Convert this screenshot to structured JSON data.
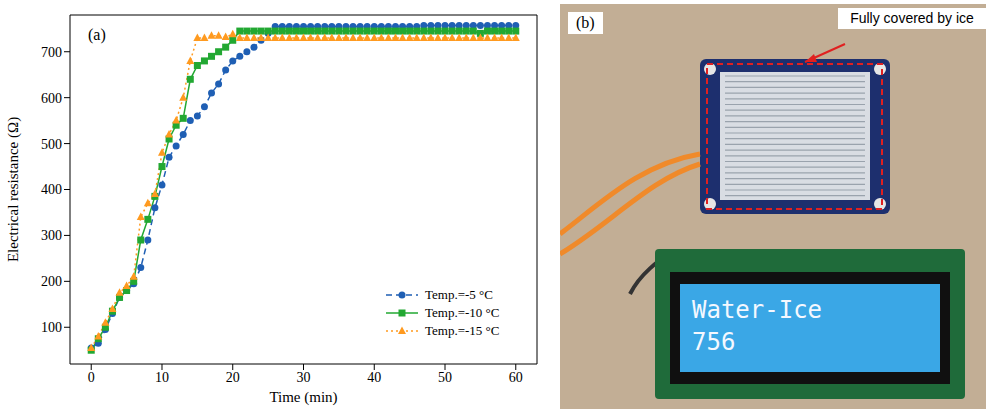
{
  "chart_data": {
    "type": "line",
    "annotations": [
      "(a)"
    ],
    "x_label": "Time (min)",
    "y_label": "Electrical resistance (Ω)",
    "x": [
      0,
      1,
      2,
      3,
      4,
      5,
      6,
      7,
      8,
      9,
      10,
      11,
      12,
      13,
      14,
      15,
      16,
      17,
      18,
      19,
      20,
      21,
      22,
      23,
      24,
      25,
      26,
      27,
      28,
      29,
      30,
      31,
      32,
      33,
      34,
      35,
      36,
      37,
      38,
      39,
      40,
      41,
      42,
      43,
      44,
      45,
      46,
      47,
      48,
      49,
      50,
      51,
      52,
      53,
      54,
      55,
      56,
      57,
      58,
      59,
      60
    ],
    "xlim": [
      -3,
      63
    ],
    "xticks": [
      0,
      10,
      20,
      30,
      40,
      50,
      60
    ],
    "ylim": [
      20,
      780
    ],
    "yticks": [
      100,
      200,
      300,
      400,
      500,
      600,
      700
    ],
    "grid": false,
    "legend": "lower right",
    "series": [
      {
        "name": "Temp.=-5 °C",
        "color": "#1f5fb4",
        "marker": "circle",
        "line_style": "dashed",
        "values": [
          55,
          65,
          95,
          130,
          165,
          180,
          195,
          230,
          290,
          360,
          410,
          470,
          495,
          520,
          550,
          560,
          580,
          610,
          630,
          660,
          680,
          690,
          700,
          710,
          725,
          740,
          755,
          755,
          755,
          755,
          755,
          755,
          755,
          755,
          755,
          755,
          755,
          755,
          755,
          755,
          755,
          755,
          755,
          755,
          755,
          755,
          755,
          757,
          757,
          757,
          757,
          757,
          757,
          757,
          757,
          757,
          757,
          757,
          757,
          757,
          757
        ]
      },
      {
        "name": "Temp.=-10 °C",
        "color": "#22a832",
        "marker": "square",
        "line_style": "solid",
        "values": [
          50,
          75,
          100,
          135,
          165,
          180,
          200,
          290,
          335,
          385,
          450,
          510,
          540,
          555,
          640,
          670,
          680,
          690,
          700,
          710,
          725,
          745,
          745,
          745,
          745,
          745,
          745,
          745,
          745,
          745,
          745,
          745,
          745,
          745,
          745,
          745,
          745,
          745,
          745,
          745,
          745,
          745,
          745,
          745,
          745,
          745,
          745,
          745,
          745,
          745,
          745,
          745,
          745,
          745,
          745,
          740,
          745,
          745,
          745,
          745,
          745
        ]
      },
      {
        "name": "Temp.=-15 °C",
        "color": "#ff9a1f",
        "marker": "triangle",
        "line_style": "dotted",
        "values": [
          55,
          80,
          110,
          140,
          175,
          190,
          210,
          340,
          370,
          390,
          480,
          520,
          550,
          600,
          680,
          730,
          730,
          735,
          735,
          732,
          738,
          730,
          730,
          730,
          730,
          730,
          730,
          730,
          730,
          730,
          730,
          730,
          730,
          730,
          730,
          730,
          730,
          730,
          730,
          730,
          730,
          730,
          730,
          730,
          730,
          730,
          730,
          730,
          730,
          730,
          730,
          730,
          730,
          730,
          730,
          730,
          730,
          730,
          730,
          730,
          730
        ]
      }
    ]
  },
  "photo_panel": {
    "label": "(b)",
    "annotation": "Fully covered by ice",
    "display_lines": [
      "Water-Ice",
      756
    ]
  }
}
